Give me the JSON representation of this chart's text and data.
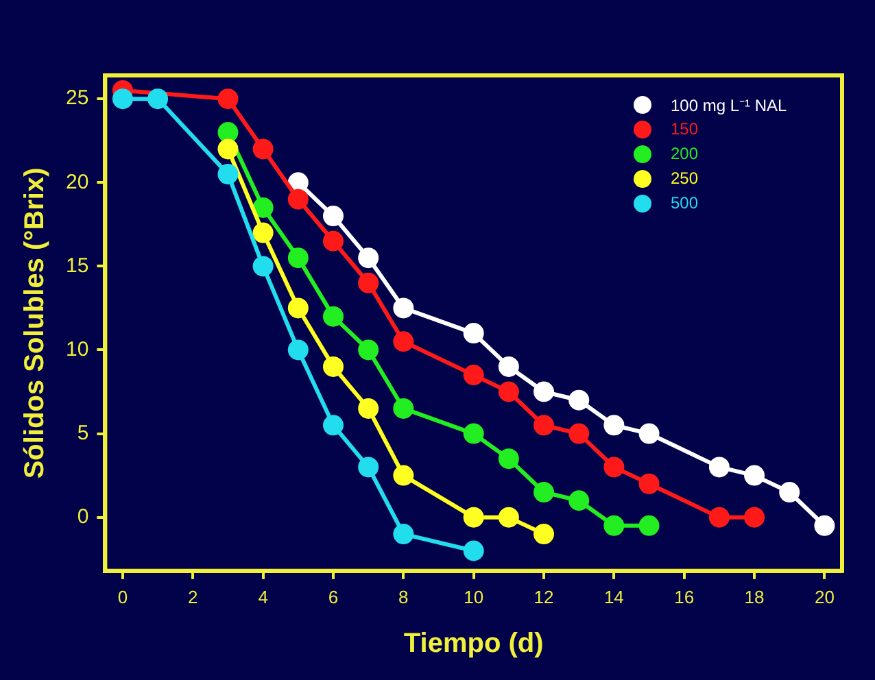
{
  "chart_data": {
    "type": "line",
    "xlabel": "Tiempo (d)",
    "ylabel": "Sólidos Solubles (°Brix)",
    "xlim": [
      -0.5,
      20.5
    ],
    "xticks": [
      0,
      2,
      4,
      6,
      8,
      10,
      12,
      14,
      16,
      18,
      20
    ],
    "ylim": [
      -3.2,
      26.4
    ],
    "yticks": [
      0,
      5,
      10,
      15,
      20,
      25
    ],
    "grid": false,
    "legend": "top right",
    "marker": "circle",
    "line_style": "solid",
    "series": [
      {
        "name": "100 mg L⁻¹ NAL",
        "color": "#ffffff",
        "x": [
          5,
          6,
          7,
          8,
          10,
          11,
          12,
          13,
          14,
          15,
          17,
          18,
          19,
          20
        ],
        "values": [
          20,
          18,
          15.5,
          12.5,
          11,
          9,
          7.5,
          7,
          5.5,
          5,
          3,
          2.5,
          1.5,
          -0.5
        ]
      },
      {
        "name": "150",
        "color": "#ff1a1a",
        "x": [
          0,
          1,
          3,
          4,
          5,
          6,
          7,
          8,
          10,
          11,
          12,
          13,
          14,
          15,
          17,
          18
        ],
        "values": [
          25.5,
          null,
          25,
          22,
          19,
          16.5,
          14,
          10.5,
          8.5,
          7.5,
          5.5,
          5,
          3,
          2,
          0,
          0
        ]
      },
      {
        "name": "200",
        "color": "#22ee22",
        "x": [
          3,
          4,
          5,
          6,
          7,
          8,
          10,
          11,
          12,
          13,
          14,
          15
        ],
        "values": [
          23,
          18.5,
          15.5,
          12,
          10,
          6.5,
          5,
          3.5,
          1.5,
          1,
          -0.5,
          -0.5
        ]
      },
      {
        "name": "250",
        "color": "#ffff22",
        "x": [
          3,
          4,
          5,
          6,
          7,
          8,
          10,
          11,
          12
        ],
        "values": [
          22,
          17,
          12.5,
          9,
          6.5,
          2.5,
          0,
          0,
          -1
        ]
      },
      {
        "name": "500",
        "color": "#22ddee",
        "x": [
          0,
          1,
          3,
          4,
          5,
          6,
          7,
          8,
          10
        ],
        "values": [
          25,
          25,
          20.5,
          15,
          10,
          5.5,
          3,
          -1,
          -2
        ]
      }
    ]
  }
}
